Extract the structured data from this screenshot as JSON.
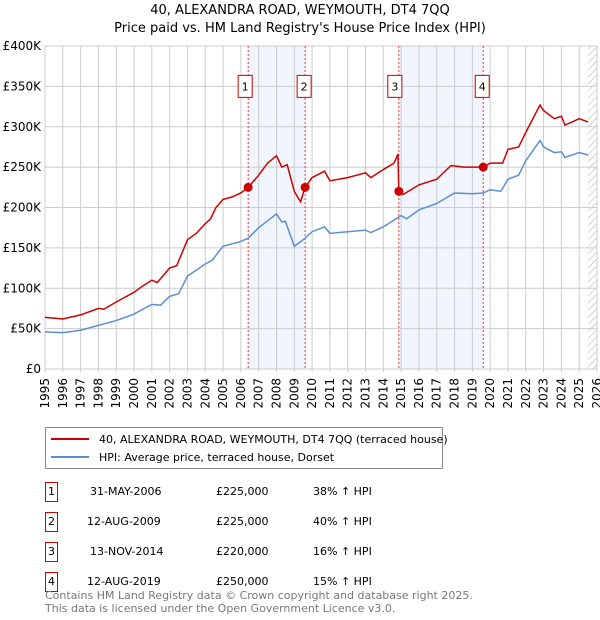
{
  "chart_data": {
    "type": "line",
    "title": "40, ALEXANDRA ROAD, WEYMOUTH, DT4 7QQ",
    "subtitle": "Price paid vs. HM Land Registry's House Price Index (HPI)",
    "xlim": [
      1995,
      2026
    ],
    "ylim": [
      0,
      400000
    ],
    "x_ticks": [
      "1995",
      "1996",
      "1997",
      "1998",
      "1999",
      "2000",
      "2001",
      "2002",
      "2003",
      "2004",
      "2005",
      "2006",
      "2007",
      "2008",
      "2009",
      "2010",
      "2011",
      "2012",
      "2013",
      "2014",
      "2015",
      "2016",
      "2017",
      "2018",
      "2019",
      "2020",
      "2021",
      "2022",
      "2023",
      "2024",
      "2025",
      "2026"
    ],
    "y_ticks": [
      {
        "v": 0,
        "label": "£0"
      },
      {
        "v": 50000,
        "label": "£50K"
      },
      {
        "v": 100000,
        "label": "£100K"
      },
      {
        "v": 150000,
        "label": "£150K"
      },
      {
        "v": 200000,
        "label": "£200K"
      },
      {
        "v": 250000,
        "label": "£250K"
      },
      {
        "v": 300000,
        "label": "£300K"
      },
      {
        "v": 350000,
        "label": "£350K"
      },
      {
        "v": 400000,
        "label": "£400K"
      }
    ],
    "grid": true,
    "series": [
      {
        "name": "40, ALEXANDRA ROAD, WEYMOUTH, DT4 7QQ (terraced house)",
        "color": "#cc0000",
        "points": [
          [
            1995,
            64
          ],
          [
            1995.5,
            63
          ],
          [
            1996,
            62
          ],
          [
            1997,
            67
          ],
          [
            1998,
            75
          ],
          [
            1998.3,
            74
          ],
          [
            1999,
            83
          ],
          [
            2000,
            95
          ],
          [
            2000.5,
            103
          ],
          [
            2001,
            110
          ],
          [
            2001.3,
            107
          ],
          [
            2002,
            125
          ],
          [
            2002.4,
            128
          ],
          [
            2003,
            160
          ],
          [
            2003.5,
            168
          ],
          [
            2004,
            180
          ],
          [
            2004.3,
            186
          ],
          [
            2004.6,
            200
          ],
          [
            2005,
            210
          ],
          [
            2005.5,
            213
          ],
          [
            2006,
            218
          ],
          [
            2006.41,
            225
          ],
          [
            2007,
            240
          ],
          [
            2007.5,
            255
          ],
          [
            2008,
            264
          ],
          [
            2008.3,
            250
          ],
          [
            2008.6,
            253
          ],
          [
            2009,
            220
          ],
          [
            2009.35,
            207
          ],
          [
            2009.61,
            225
          ],
          [
            2010,
            237
          ],
          [
            2010.7,
            245
          ],
          [
            2011,
            233
          ],
          [
            2012,
            237
          ],
          [
            2013,
            243
          ],
          [
            2013.3,
            237
          ],
          [
            2014,
            247
          ],
          [
            2014.6,
            255
          ],
          [
            2014.82,
            266
          ],
          [
            2014.87,
            220
          ],
          [
            2015.1,
            216
          ],
          [
            2016,
            228
          ],
          [
            2017,
            235
          ],
          [
            2017.8,
            252
          ],
          [
            2018.5,
            250
          ],
          [
            2019,
            250
          ],
          [
            2019.61,
            250
          ],
          [
            2020,
            255
          ],
          [
            2020.7,
            255
          ],
          [
            2021,
            272
          ],
          [
            2021.6,
            275
          ],
          [
            2022,
            293
          ],
          [
            2022.8,
            327
          ],
          [
            2023,
            320
          ],
          [
            2023.6,
            310
          ],
          [
            2024,
            313
          ],
          [
            2024.2,
            302
          ],
          [
            2025,
            310
          ],
          [
            2025.5,
            306
          ]
        ]
      },
      {
        "name": "HPI: Average price, terraced house, Dorset",
        "color": "#5b8fd4",
        "points": [
          [
            1995,
            46
          ],
          [
            1996,
            45
          ],
          [
            1997,
            48
          ],
          [
            1998,
            54
          ],
          [
            1999,
            60
          ],
          [
            2000,
            68
          ],
          [
            2001,
            80
          ],
          [
            2001.5,
            79
          ],
          [
            2002,
            90
          ],
          [
            2002.5,
            93
          ],
          [
            2003,
            115
          ],
          [
            2004,
            130
          ],
          [
            2004.4,
            135
          ],
          [
            2005,
            152
          ],
          [
            2006,
            158
          ],
          [
            2006.41,
            162
          ],
          [
            2007,
            175
          ],
          [
            2008,
            192
          ],
          [
            2008.3,
            182
          ],
          [
            2008.5,
            183
          ],
          [
            2009,
            152
          ],
          [
            2009.5,
            160
          ],
          [
            2010,
            170
          ],
          [
            2010.7,
            176
          ],
          [
            2011,
            168
          ],
          [
            2012,
            170
          ],
          [
            2013,
            172
          ],
          [
            2013.3,
            169
          ],
          [
            2014,
            176
          ],
          [
            2015,
            190
          ],
          [
            2015.3,
            186
          ],
          [
            2016,
            197
          ],
          [
            2017,
            205
          ],
          [
            2018,
            218
          ],
          [
            2019,
            217
          ],
          [
            2019.61,
            218
          ],
          [
            2020,
            222
          ],
          [
            2020.6,
            220
          ],
          [
            2021,
            235
          ],
          [
            2021.6,
            240
          ],
          [
            2022,
            258
          ],
          [
            2022.8,
            283
          ],
          [
            2023,
            275
          ],
          [
            2023.6,
            268
          ],
          [
            2024,
            269
          ],
          [
            2024.2,
            262
          ],
          [
            2025,
            268
          ],
          [
            2025.5,
            265
          ]
        ]
      }
    ],
    "sales": [
      {
        "n": "1",
        "x": 2006.41,
        "date": "31-MAY-2006",
        "price_value": 225000,
        "price": "£225,000",
        "hpi": "38% ↑ HPI"
      },
      {
        "n": "2",
        "x": 2009.61,
        "date": "12-AUG-2009",
        "price_value": 225000,
        "price": "£225,000",
        "hpi": "40% ↑ HPI"
      },
      {
        "n": "3",
        "x": 2014.87,
        "date": "13-NOV-2014",
        "price_value": 220000,
        "price": "£220,000",
        "hpi": "16% ↑ HPI"
      },
      {
        "n": "4",
        "x": 2019.61,
        "date": "12-AUG-2019",
        "price_value": 250000,
        "price": "£250,000",
        "hpi": "15% ↑ HPI"
      }
    ],
    "shaded_ranges": [
      [
        2006.41,
        2009.61
      ],
      [
        2014.87,
        2019.61
      ]
    ],
    "forecast_hatch_from": 2025.5,
    "legend": [
      "40, ALEXANDRA ROAD, WEYMOUTH, DT4 7QQ (terraced house)",
      "HPI: Average price, terraced house, Dorset"
    ],
    "legend_placement": "bottom"
  },
  "footer": [
    "Contains HM Land Registry data © Crown copyright and database right 2025.",
    "This data is licensed under the Open Government Licence v3.0."
  ]
}
